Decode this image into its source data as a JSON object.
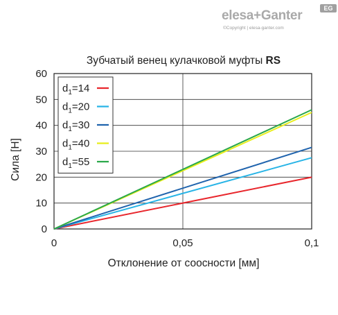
{
  "logo": {
    "brand": "elesa+Ganter",
    "badge": "EG",
    "copyright": "©Copyright | elesa-ganter.com"
  },
  "chart_data": {
    "type": "line",
    "title": "Зубчатый венец кулачковой муфты",
    "title_bold": "RS",
    "xlabel": "Отклонение от соосности [мм]",
    "ylabel": "Сила [Н]",
    "xlim": [
      0,
      0.1
    ],
    "ylim": [
      0,
      60
    ],
    "xticks": [
      0,
      0.05,
      0.1
    ],
    "xtick_labels": [
      "0",
      "0,05",
      "0,1"
    ],
    "yticks": [
      0,
      10,
      20,
      30,
      40,
      50,
      60
    ],
    "ytick_labels": [
      "0",
      "10",
      "20",
      "30",
      "40",
      "50",
      "60"
    ],
    "grid": true,
    "legend_position": "top-left",
    "series": [
      {
        "name": "d1=14",
        "label_main": "d",
        "label_sub": "1",
        "label_rest": "=14",
        "color": "#e8262c",
        "x": [
          0,
          0.1
        ],
        "values": [
          0,
          20
        ]
      },
      {
        "name": "d1=20",
        "label_main": "d",
        "label_sub": "1",
        "label_rest": "=20",
        "color": "#28b4e6",
        "x": [
          0,
          0.1
        ],
        "values": [
          0,
          27.5
        ]
      },
      {
        "name": "d1=30",
        "label_main": "d",
        "label_sub": "1",
        "label_rest": "=30",
        "color": "#1f63ad",
        "x": [
          0,
          0.1
        ],
        "values": [
          0,
          31.5
        ]
      },
      {
        "name": "d1=40",
        "label_main": "d",
        "label_sub": "1",
        "label_rest": "=40",
        "color": "#e8ee1a",
        "x": [
          0,
          0.1
        ],
        "values": [
          0,
          45
        ]
      },
      {
        "name": "d1=55",
        "label_main": "d",
        "label_sub": "1",
        "label_rest": "=55",
        "color": "#2aa84a",
        "x": [
          0,
          0.1
        ],
        "values": [
          0,
          46
        ]
      }
    ]
  }
}
